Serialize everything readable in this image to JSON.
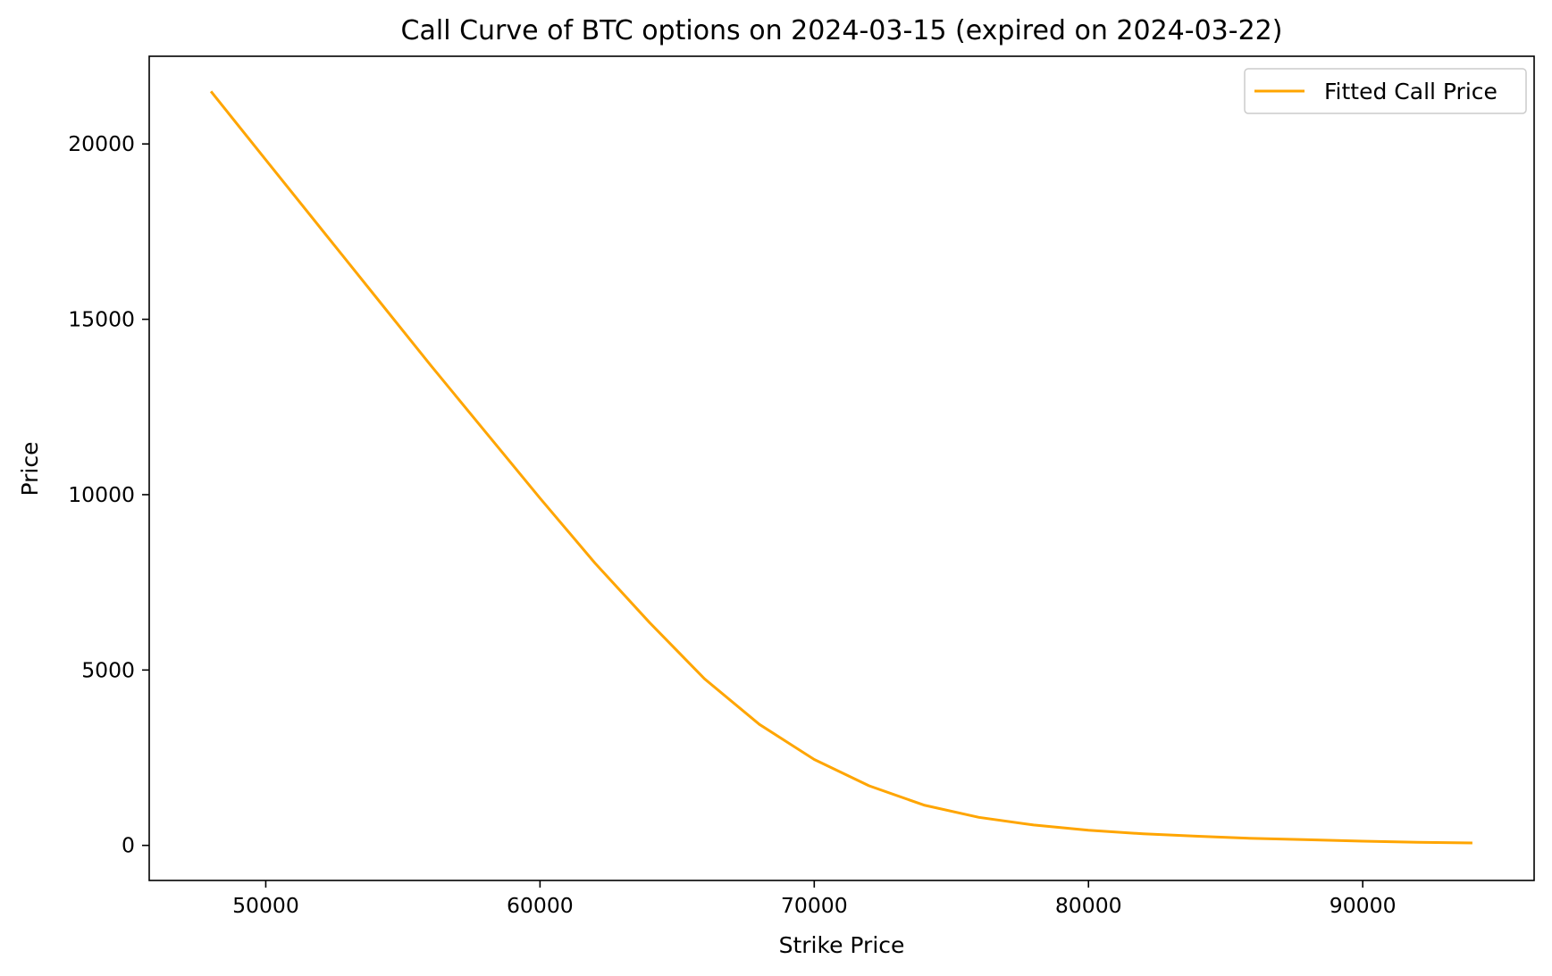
{
  "chart_data": {
    "type": "line",
    "title": "Call Curve of BTC options on 2024-03-15 (expired on 2024-03-22)",
    "xlabel": "Strike Price",
    "ylabel": "Price",
    "xlim": [
      45750,
      96250
    ],
    "ylim": [
      -1000,
      22500
    ],
    "xticks": [
      50000,
      60000,
      70000,
      80000,
      90000
    ],
    "xtick_labels": [
      "50000",
      "60000",
      "70000",
      "80000",
      "90000"
    ],
    "yticks": [
      0,
      5000,
      10000,
      15000,
      20000
    ],
    "ytick_labels": [
      "0",
      "5000",
      "10000",
      "15000",
      "20000"
    ],
    "grid": false,
    "legend_position": "top-right",
    "series": [
      {
        "name": "Fitted Call Price",
        "color": "#ffa500",
        "x": [
          48000,
          50000,
          52000,
          54000,
          56000,
          58000,
          60000,
          62000,
          64000,
          66000,
          68000,
          70000,
          72000,
          74000,
          76000,
          78000,
          80000,
          82000,
          84000,
          86000,
          88000,
          90000,
          92000,
          94000
        ],
        "y": [
          21500,
          19550,
          17600,
          15650,
          13700,
          11800,
          9900,
          8050,
          6350,
          4750,
          3450,
          2450,
          1700,
          1150,
          800,
          580,
          430,
          330,
          260,
          200,
          160,
          120,
          90,
          70
        ]
      }
    ]
  }
}
